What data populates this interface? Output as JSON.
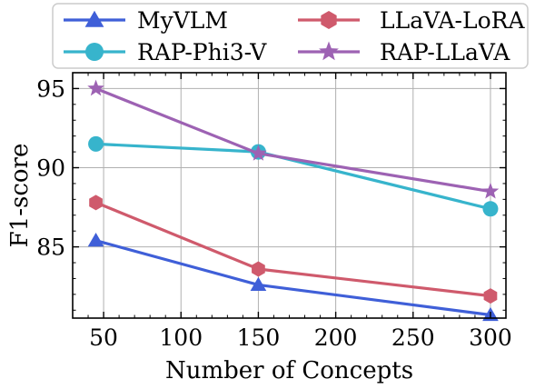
{
  "chart_data": {
    "type": "line",
    "xlabel": "Number of Concepts",
    "ylabel": "F1-score",
    "xlim": [
      30,
      310
    ],
    "ylim": [
      80.5,
      96
    ],
    "xticks": [
      50,
      100,
      150,
      200,
      250,
      300
    ],
    "yticks": [
      85,
      90,
      95
    ],
    "grid": true,
    "legend_position": "top, above plot, 2 columns",
    "x": [
      45,
      150,
      300
    ],
    "series": [
      {
        "name": "MyVLM",
        "values": [
          85.4,
          82.6,
          80.7
        ],
        "color": "#3f5fd8",
        "marker": "triangle"
      },
      {
        "name": "LLaVA-LoRA",
        "values": [
          87.8,
          83.6,
          81.9
        ],
        "color": "#cf5a6c",
        "marker": "hexagon"
      },
      {
        "name": "RAP-Phi3-V",
        "values": [
          91.5,
          91.0,
          87.4
        ],
        "color": "#37b4cc",
        "marker": "circle"
      },
      {
        "name": "RAP-LLaVA",
        "values": [
          95.0,
          90.9,
          88.5
        ],
        "color": "#9d62b3",
        "marker": "star"
      }
    ]
  }
}
